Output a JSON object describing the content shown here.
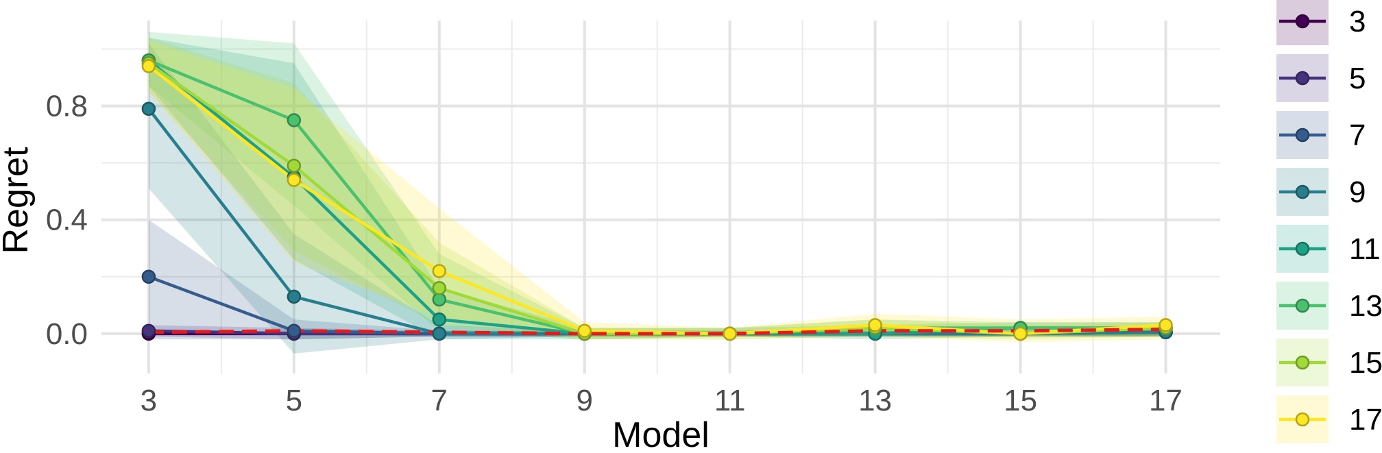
{
  "chart_data": {
    "type": "line",
    "title": "",
    "xlabel": "Model",
    "ylabel": "Regret",
    "x": [
      3,
      5,
      7,
      9,
      11,
      13,
      15,
      17
    ],
    "x_tick_labels": [
      "3",
      "5",
      "7",
      "9",
      "11",
      "13",
      "15",
      "17"
    ],
    "y_tick_labels": [
      "0.0",
      "0.4",
      "0.8"
    ],
    "y_ticks": [
      0,
      0.4,
      0.8
    ],
    "xlim": [
      2.35,
      17.75
    ],
    "ylim": [
      -0.14,
      1.1
    ],
    "grid": true,
    "legend_position": "right",
    "series": [
      {
        "name": "3",
        "color": "#440154",
        "values": [
          0.0,
          0.0,
          0.0,
          0.0,
          0.0,
          0.0,
          0.0,
          0.005
        ],
        "lower": [
          0.0,
          0.0,
          -0.01,
          -0.01,
          -0.01,
          -0.01,
          -0.01,
          -0.01
        ],
        "upper": [
          0.01,
          0.01,
          0.01,
          0.01,
          0.01,
          0.01,
          0.01,
          0.02
        ]
      },
      {
        "name": "5",
        "color": "#46337e",
        "values": [
          0.01,
          0.0,
          0.0,
          0.0,
          0.0,
          0.0,
          0.0,
          0.005
        ],
        "lower": [
          -0.01,
          -0.02,
          -0.01,
          -0.01,
          -0.01,
          -0.01,
          -0.01,
          -0.01
        ],
        "upper": [
          0.03,
          0.02,
          0.01,
          0.01,
          0.01,
          0.01,
          0.01,
          0.02
        ]
      },
      {
        "name": "7",
        "color": "#365c8d",
        "values": [
          0.2,
          0.01,
          0.0,
          0.0,
          0.0,
          0.0,
          0.0,
          0.005
        ],
        "lower": [
          -0.02,
          -0.02,
          -0.01,
          -0.01,
          -0.01,
          -0.01,
          -0.01,
          -0.01
        ],
        "upper": [
          0.4,
          0.05,
          0.01,
          0.01,
          0.01,
          0.01,
          0.01,
          0.02
        ]
      },
      {
        "name": "9",
        "color": "#277f8e",
        "values": [
          0.79,
          0.13,
          0.0,
          0.0,
          0.0,
          0.0,
          0.0,
          0.005
        ],
        "lower": [
          0.51,
          -0.07,
          -0.02,
          -0.01,
          -0.01,
          -0.01,
          -0.01,
          -0.01
        ],
        "upper": [
          1.02,
          0.35,
          0.03,
          0.01,
          0.01,
          0.02,
          0.02,
          0.02
        ]
      },
      {
        "name": "11",
        "color": "#1fa187",
        "values": [
          0.96,
          0.55,
          0.05,
          0.0,
          0.0,
          0.0,
          0.02,
          0.02
        ],
        "lower": [
          0.87,
          0.26,
          -0.02,
          -0.02,
          -0.01,
          -0.02,
          -0.01,
          -0.01
        ],
        "upper": [
          1.04,
          0.95,
          0.16,
          0.02,
          0.02,
          0.03,
          0.04,
          0.04
        ]
      },
      {
        "name": "13",
        "color": "#4ac16d",
        "values": [
          0.96,
          0.75,
          0.12,
          0.0,
          0.0,
          0.02,
          0.02,
          0.02
        ],
        "lower": [
          0.87,
          0.45,
          0.01,
          -0.02,
          -0.01,
          -0.01,
          -0.01,
          -0.01
        ],
        "upper": [
          1.06,
          1.02,
          0.28,
          0.02,
          0.02,
          0.05,
          0.04,
          0.04
        ]
      },
      {
        "name": "15",
        "color": "#a0da39",
        "values": [
          0.95,
          0.59,
          0.16,
          0.0,
          0.0,
          0.02,
          0.0,
          0.02
        ],
        "lower": [
          0.85,
          0.29,
          0.03,
          -0.02,
          -0.02,
          -0.01,
          -0.02,
          -0.01
        ],
        "upper": [
          1.04,
          0.88,
          0.32,
          0.02,
          0.02,
          0.05,
          0.03,
          0.04
        ]
      },
      {
        "name": "17",
        "color": "#fde725",
        "values": [
          0.94,
          0.54,
          0.22,
          0.01,
          0.0,
          0.03,
          0.0,
          0.03
        ],
        "lower": [
          0.85,
          0.25,
          0.06,
          -0.02,
          -0.02,
          -0.01,
          -0.03,
          -0.02
        ],
        "upper": [
          1.03,
          0.86,
          0.44,
          0.04,
          0.02,
          0.07,
          0.05,
          0.06
        ]
      }
    ],
    "reference_line": {
      "color": "#e41a1c",
      "style": "dashed",
      "values": [
        0.005,
        0.01,
        0.005,
        0.0,
        0.0,
        0.01,
        0.01,
        0.015
      ]
    }
  }
}
